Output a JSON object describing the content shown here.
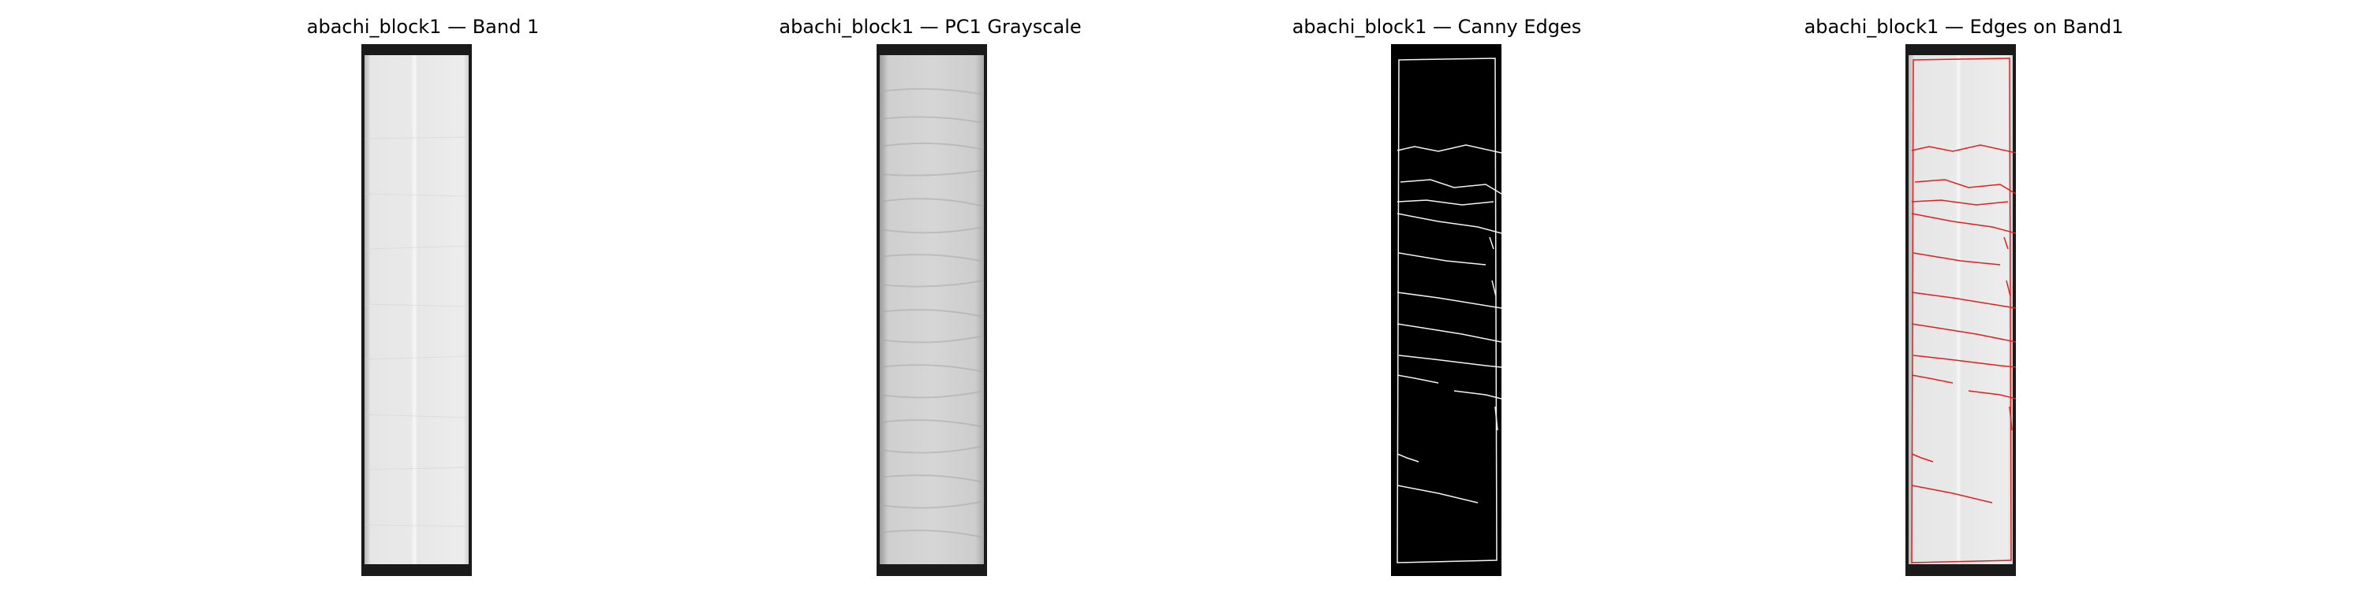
{
  "figure": {
    "panels": [
      {
        "title": "abachi_block1 — Band 1",
        "kind": "band1"
      },
      {
        "title": "abachi_block1 — PC1 Grayscale",
        "kind": "pc1"
      },
      {
        "title": "abachi_block1 — Canny Edges",
        "kind": "edges"
      },
      {
        "title": "abachi_block1 — Edges on Band1",
        "kind": "overlay"
      }
    ]
  },
  "colors": {
    "frame": "#1a1a1a",
    "band_light": "#ececec",
    "pc1_base": "#c8c8c8",
    "edge_white": "#f4f4f4",
    "edge_red": "#e01f1f"
  }
}
